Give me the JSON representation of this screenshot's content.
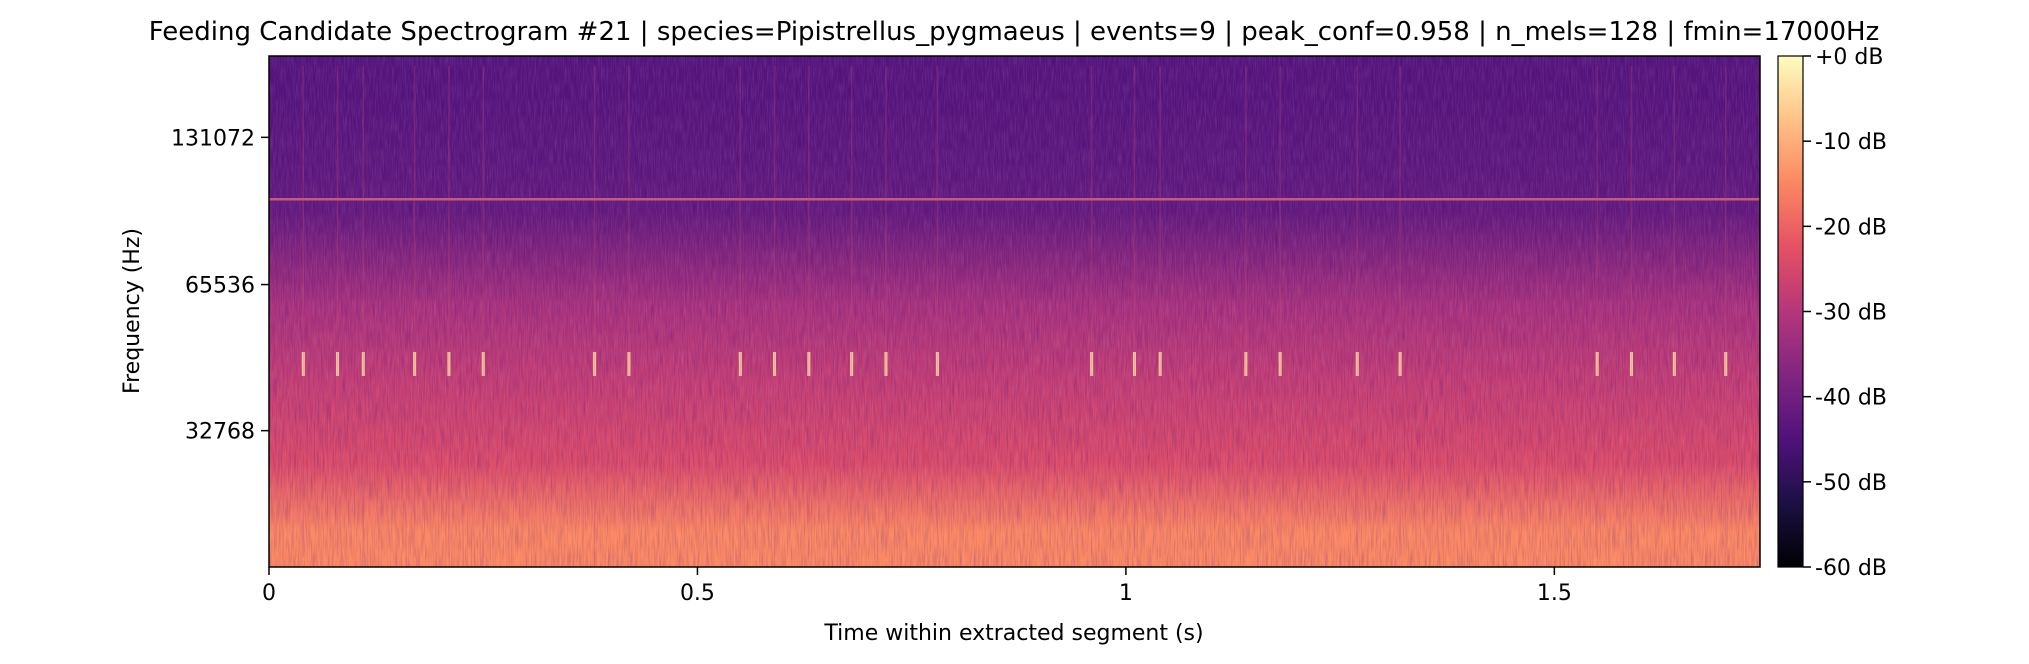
{
  "chart_data": {
    "type": "heatmap",
    "title": "Feeding Candidate Spectrogram #21 | species=Pipistrellus_pygmaeus | events=9 | peak_conf=0.958 | n_mels=128 | fmin=17000Hz",
    "xlabel": "Time within extracted segment (s)",
    "ylabel": "Frequency (Hz)",
    "x_scale": "linear",
    "y_scale": "mel",
    "xlim": [
      0,
      1.74
    ],
    "ylim_hz": [
      17000,
      192000
    ],
    "x_ticks": [
      {
        "value": 0,
        "label": "0"
      },
      {
        "value": 0.5,
        "label": "0.5"
      },
      {
        "value": 1,
        "label": "1"
      },
      {
        "value": 1.5,
        "label": "1.5"
      }
    ],
    "y_ticks": [
      {
        "value": 32768,
        "label": "32768"
      },
      {
        "value": 65536,
        "label": "65536"
      },
      {
        "value": 131072,
        "label": "131072"
      }
    ],
    "colorbar": {
      "colormap": "magma",
      "range_db": [
        -60,
        0
      ],
      "ticks": [
        {
          "value": 0,
          "label": "+0 dB"
        },
        {
          "value": -10,
          "label": "-10 dB"
        },
        {
          "value": -20,
          "label": "-20 dB"
        },
        {
          "value": -30,
          "label": "-30 dB"
        },
        {
          "value": -40,
          "label": "-40 dB"
        },
        {
          "value": -50,
          "label": "-50 dB"
        },
        {
          "value": -60,
          "label": "-60 dB"
        }
      ]
    },
    "energy_bands": [
      {
        "f_low_hz": 17000,
        "f_high_hz": 24000,
        "level_db": -15
      },
      {
        "f_low_hz": 24000,
        "f_high_hz": 32768,
        "level_db": -24
      },
      {
        "f_low_hz": 32768,
        "f_high_hz": 55000,
        "level_db": -28
      },
      {
        "f_low_hz": 55000,
        "f_high_hz": 65536,
        "level_db": -32
      },
      {
        "f_low_hz": 65536,
        "f_high_hz": 131072,
        "level_db": -42
      },
      {
        "f_low_hz": 131072,
        "f_high_hz": 192000,
        "level_db": -44
      }
    ],
    "tonal_line_hz": 98000,
    "call_frequency_hz": 45000,
    "call_times_s": [
      0.04,
      0.08,
      0.11,
      0.17,
      0.21,
      0.25,
      0.38,
      0.42,
      0.55,
      0.59,
      0.63,
      0.68,
      0.72,
      0.78,
      0.96,
      1.01,
      1.04,
      1.14,
      1.18,
      1.27,
      1.32,
      1.55,
      1.59,
      1.64,
      1.7
    ]
  }
}
